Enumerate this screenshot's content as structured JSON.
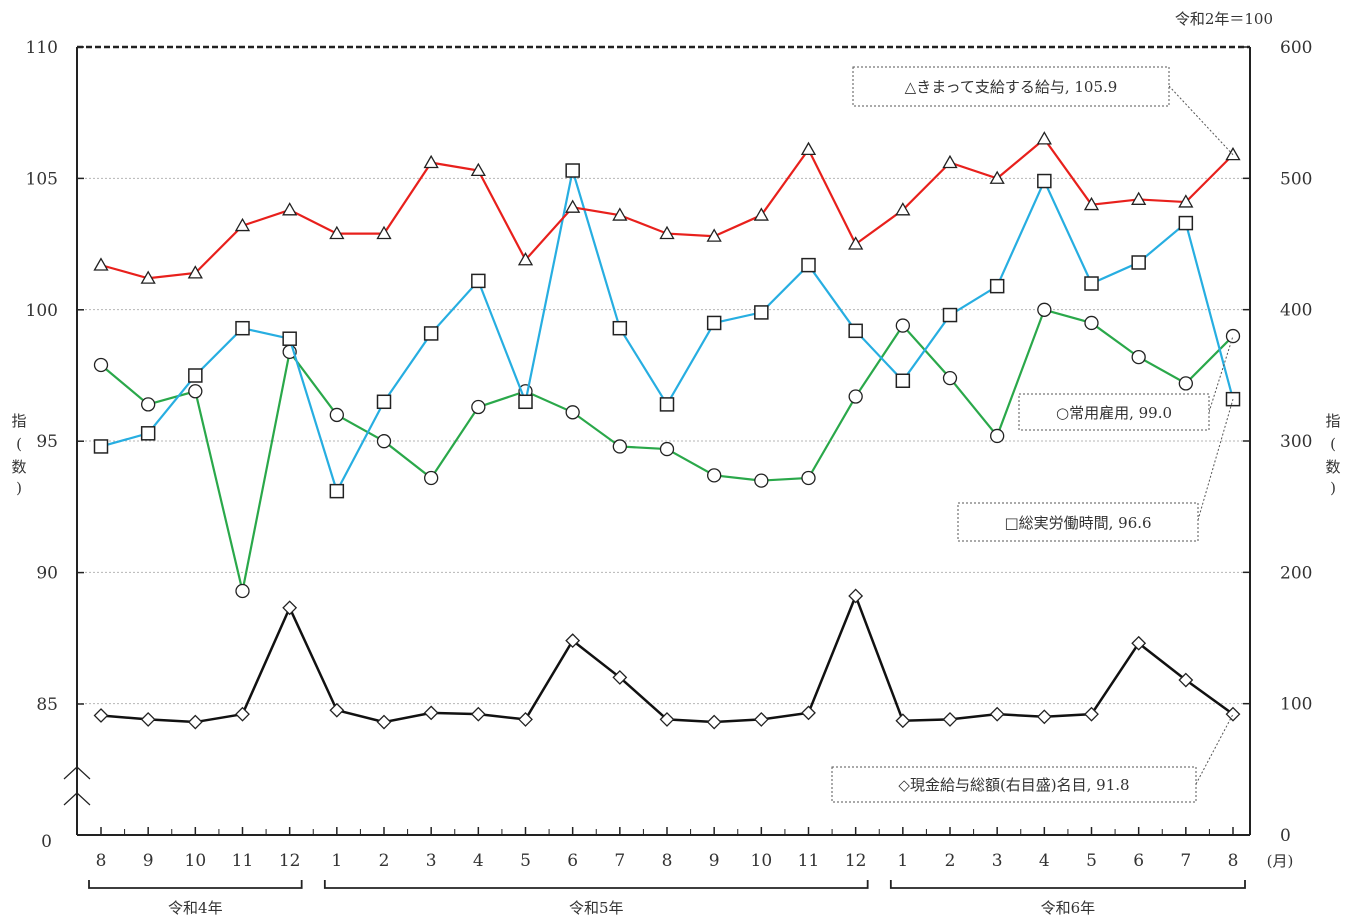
{
  "chart_data": {
    "type": "line",
    "base_note": "令和2年＝100",
    "left_axis": {
      "label_top": "指",
      "label_bottom": "数",
      "ticks": [
        "110",
        "105",
        "100",
        "95",
        "90",
        "85",
        "0"
      ],
      "ylim": [
        83,
        110
      ],
      "break": true
    },
    "right_axis": {
      "label_top": "指",
      "label_bottom": "数",
      "ticks": [
        "600",
        "500",
        "400",
        "300",
        "200",
        "100",
        "0"
      ],
      "ylim": [
        0,
        600
      ]
    },
    "x_categories": [
      "8",
      "9",
      "10",
      "11",
      "12",
      "1",
      "2",
      "3",
      "4",
      "5",
      "6",
      "7",
      "8",
      "9",
      "10",
      "11",
      "12",
      "1",
      "2",
      "3",
      "4",
      "5",
      "6",
      "7",
      "8"
    ],
    "x_unit": "(月)",
    "year_groups": [
      {
        "label": "令和4年",
        "start": 0,
        "end": 4
      },
      {
        "label": "令和5年",
        "start": 5,
        "end": 16
      },
      {
        "label": "令和6年",
        "start": 17,
        "end": 24
      }
    ],
    "grid": true,
    "series": [
      {
        "name": "△きまって支給する給与",
        "axis": "left",
        "color": "#e8201c",
        "marker": "triangle",
        "values": [
          101.7,
          101.2,
          101.4,
          103.2,
          103.8,
          102.9,
          102.9,
          105.6,
          105.3,
          101.9,
          103.9,
          103.6,
          102.9,
          102.8,
          103.6,
          106.1,
          102.5,
          103.8,
          105.6,
          105.0,
          106.5,
          104.0,
          104.2,
          104.1,
          105.9
        ]
      },
      {
        "name": "□総実労働時間",
        "axis": "left",
        "color": "#27aee1",
        "marker": "square",
        "values": [
          94.8,
          95.3,
          97.5,
          99.3,
          98.9,
          93.1,
          96.5,
          99.1,
          101.1,
          96.5,
          105.3,
          99.3,
          96.4,
          99.5,
          99.9,
          101.7,
          99.2,
          97.3,
          99.8,
          100.9,
          104.9,
          101.0,
          101.8,
          103.3,
          96.6
        ]
      },
      {
        "name": "○常用雇用",
        "axis": "left",
        "color": "#2aa84a",
        "marker": "circle",
        "values": [
          97.9,
          96.4,
          96.9,
          89.3,
          98.4,
          96.0,
          95.0,
          93.6,
          96.3,
          96.9,
          96.1,
          94.8,
          94.7,
          93.7,
          93.5,
          93.6,
          96.7,
          99.4,
          97.4,
          95.2,
          100.0,
          99.5,
          98.2,
          97.2,
          99.0
        ]
      },
      {
        "name": "◇現金給与総額(右目盛)名目",
        "axis": "right",
        "color": "#111111",
        "marker": "diamond",
        "values": [
          91,
          88,
          86,
          92,
          173,
          95,
          86,
          93,
          92,
          88,
          148,
          120,
          88,
          86,
          88,
          93,
          182,
          87,
          88,
          92,
          90,
          92,
          146,
          118,
          92
        ]
      }
    ],
    "annotations": [
      {
        "series": 0,
        "text": "△きまって支給する給与, 105.9"
      },
      {
        "series": 2,
        "text": "○常用雇用, 99.0"
      },
      {
        "series": 1,
        "text": "□総実労働時間, 96.6"
      },
      {
        "series": 3,
        "text": "◇現金給与総額(右目盛)名目, 91.8"
      }
    ]
  }
}
